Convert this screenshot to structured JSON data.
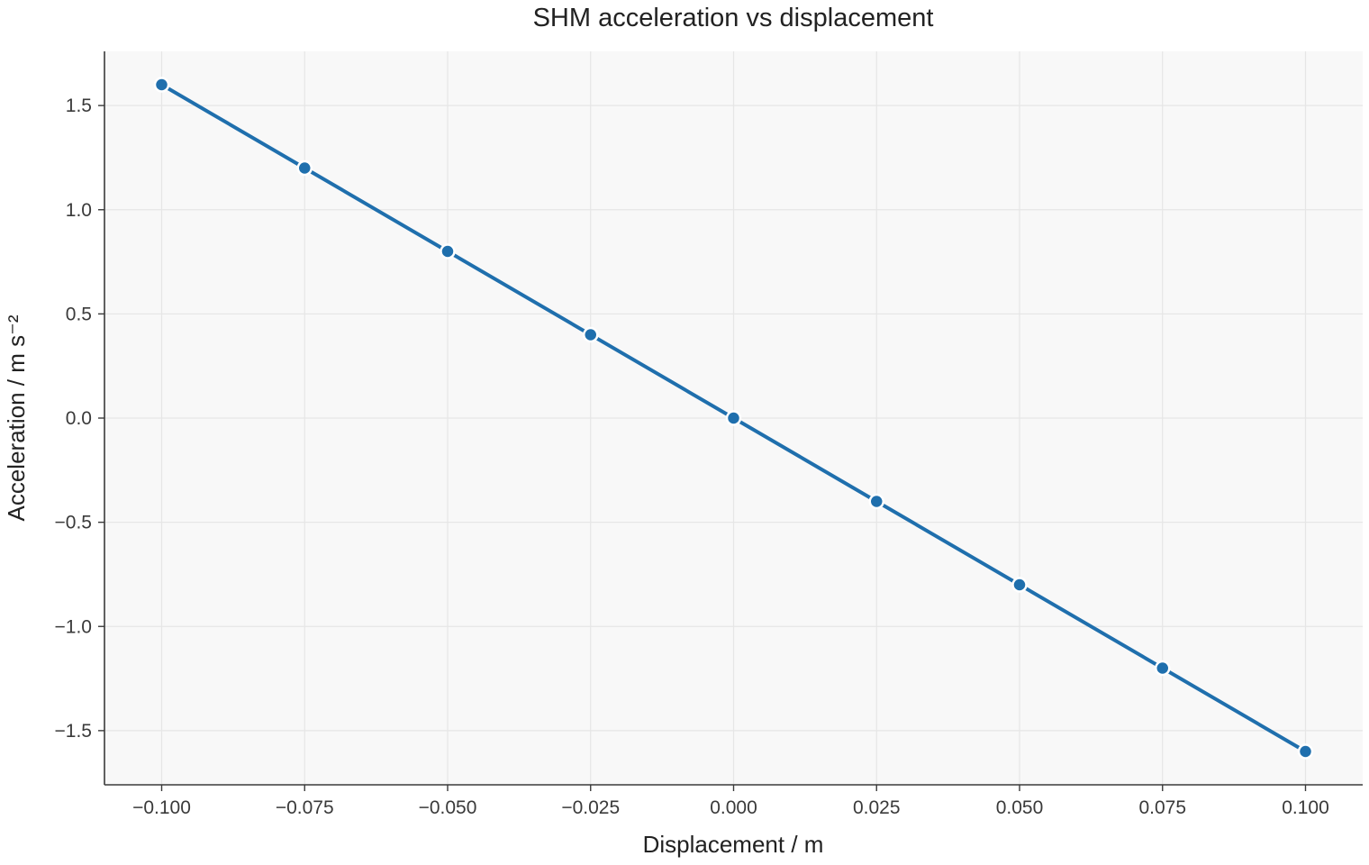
{
  "chart_data": {
    "type": "line",
    "title": "SHM acceleration vs displacement",
    "xlabel": "Displacement / m",
    "ylabel": "Acceleration / m s⁻²",
    "xlim": [
      -0.11,
      0.11
    ],
    "ylim": [
      -1.76,
      1.76
    ],
    "x_ticks": [
      -0.1,
      -0.075,
      -0.05,
      -0.025,
      0.0,
      0.025,
      0.05,
      0.075,
      0.1
    ],
    "x_tick_labels": [
      "−0.100",
      "−0.075",
      "−0.050",
      "−0.025",
      "0.000",
      "0.025",
      "0.050",
      "0.075",
      "0.100"
    ],
    "y_ticks": [
      -1.5,
      -1.0,
      -0.5,
      0.0,
      0.5,
      1.0,
      1.5
    ],
    "y_tick_labels": [
      "−1.5",
      "−1.0",
      "−0.5",
      "0.0",
      "0.5",
      "1.0",
      "1.5"
    ],
    "grid": true,
    "series": [
      {
        "color": "#1f6fad",
        "x": [
          -0.1,
          -0.075,
          -0.05,
          -0.025,
          0.0,
          0.025,
          0.05,
          0.075,
          0.1
        ],
        "y": [
          1.6,
          1.2,
          0.8,
          0.4,
          0.0,
          -0.4,
          -0.8,
          -1.2,
          -1.6
        ]
      }
    ]
  }
}
